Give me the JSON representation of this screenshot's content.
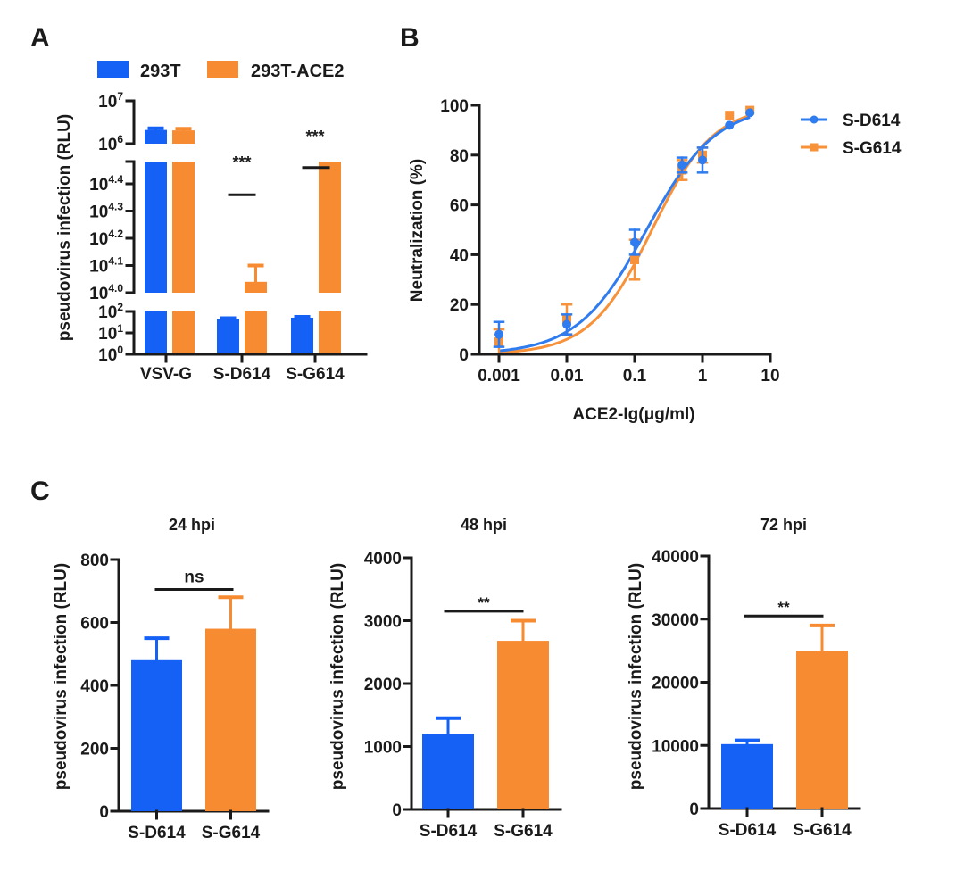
{
  "colors": {
    "blue": "#1560f5",
    "orange": "#f78b32",
    "blue_line": "#2f7bf0",
    "orange_line": "#f7923a",
    "axis": "#1a1a1a"
  },
  "chart_data": [
    {
      "panel": "A",
      "type": "bar",
      "yscale": "log (broken axis)",
      "ylabel": "pseudovirus infection (RLU)",
      "categories": [
        "VSV-G",
        "S-D614",
        "S-G614"
      ],
      "legend": {
        "placement": "top",
        "entries": [
          "293T",
          "293T-ACE2"
        ]
      },
      "y_segments": [
        {
          "range_exp": [
            0,
            2
          ],
          "ticks": [
            {
              "base": "10",
              "exp": "0"
            },
            {
              "base": "10",
              "exp": "1"
            },
            {
              "base": "10",
              "exp": "2"
            }
          ]
        },
        {
          "range_exp": [
            4.0,
            4.48
          ],
          "ticks": [
            {
              "base": "10",
              "exp": "4.0"
            },
            {
              "base": "10",
              "exp": "4.1"
            },
            {
              "base": "10",
              "exp": "4.2"
            },
            {
              "base": "10",
              "exp": "4.3"
            },
            {
              "base": "10",
              "exp": "4.4"
            }
          ]
        },
        {
          "range_exp": [
            6,
            7
          ],
          "ticks": [
            {
              "base": "10",
              "exp": "6"
            },
            {
              "base": "10",
              "exp": "7"
            }
          ]
        }
      ],
      "series": [
        {
          "name": "293T",
          "values_log10": [
            6.32,
            1.66,
            1.71
          ],
          "err_log10": [
            0.04,
            0.03,
            0.04
          ]
        },
        {
          "name": "293T-ACE2",
          "values_log10": [
            6.31,
            4.04,
            4.405
          ],
          "err_log10": [
            0.04,
            0.06,
            0.015
          ]
        }
      ],
      "significance": [
        {
          "category": "S-D614",
          "label": "***",
          "at_exp": 4.36
        },
        {
          "category": "S-G614",
          "label": "***",
          "at_exp": 4.46
        }
      ]
    },
    {
      "panel": "B",
      "type": "line",
      "xscale": "log",
      "xlabel": "ACE2-Ig(μg/ml)",
      "ylabel": "Neutralization (%)",
      "xlim": [
        0.001,
        10
      ],
      "ylim": [
        0,
        100
      ],
      "xticks": [
        "0.001",
        "0.01",
        "0.1",
        "1",
        "10"
      ],
      "yticks": [
        "0",
        "20",
        "40",
        "60",
        "80",
        "100"
      ],
      "legend": {
        "placement": "right",
        "entries": [
          "S-D614",
          "S-G614"
        ]
      },
      "x": [
        0.001,
        0.01,
        0.1,
        0.5,
        1,
        2.5,
        5
      ],
      "series": [
        {
          "name": "S-D614",
          "marker": "circle",
          "values": [
            8,
            12,
            45,
            76,
            78,
            92,
            97
          ],
          "err": [
            5,
            4,
            5,
            3,
            5,
            1,
            1
          ],
          "fit": {
            "ic50": 0.15,
            "hill": 0.85,
            "top": 100,
            "bottom": 0
          }
        },
        {
          "name": "S-G614",
          "marker": "square",
          "values": [
            5,
            14,
            38,
            74,
            80,
            96,
            98
          ],
          "err": [
            5,
            6,
            8,
            4,
            3,
            1,
            1
          ],
          "fit": {
            "ic50": 0.18,
            "hill": 0.95,
            "top": 100,
            "bottom": 0
          }
        }
      ]
    },
    {
      "panel": "C1",
      "type": "bar",
      "title": "24 hpi",
      "ylabel": "pseudovirus infection (RLU)",
      "categories": [
        "S-D614",
        "S-G614"
      ],
      "ylim": [
        0,
        800
      ],
      "yticks": [
        "0",
        "200",
        "400",
        "600",
        "800"
      ],
      "values": [
        480,
        580
      ],
      "err": [
        70,
        100
      ],
      "significance": {
        "label": "ns",
        "at": 705
      }
    },
    {
      "panel": "C2",
      "type": "bar",
      "title": "48 hpi",
      "ylabel": "pseudovirus infection (RLU)",
      "categories": [
        "S-D614",
        "S-G614"
      ],
      "ylim": [
        0,
        4000
      ],
      "yticks": [
        "0",
        "1000",
        "2000",
        "3000",
        "4000"
      ],
      "values": [
        1200,
        2680
      ],
      "err": [
        250,
        320
      ],
      "significance": {
        "label": "**",
        "at": 3150
      }
    },
    {
      "panel": "C3",
      "type": "bar",
      "title": "72 hpi",
      "ylabel": "pseudovirus infection (RLU)",
      "categories": [
        "S-D614",
        "S-G614"
      ],
      "ylim": [
        0,
        40000
      ],
      "yticks": [
        "0",
        "10000",
        "20000",
        "30000",
        "40000"
      ],
      "values": [
        10200,
        25000
      ],
      "err": [
        600,
        4000
      ],
      "significance": {
        "label": "**",
        "at": 30500
      }
    }
  ],
  "panel_labels": [
    "A",
    "B",
    "C"
  ]
}
